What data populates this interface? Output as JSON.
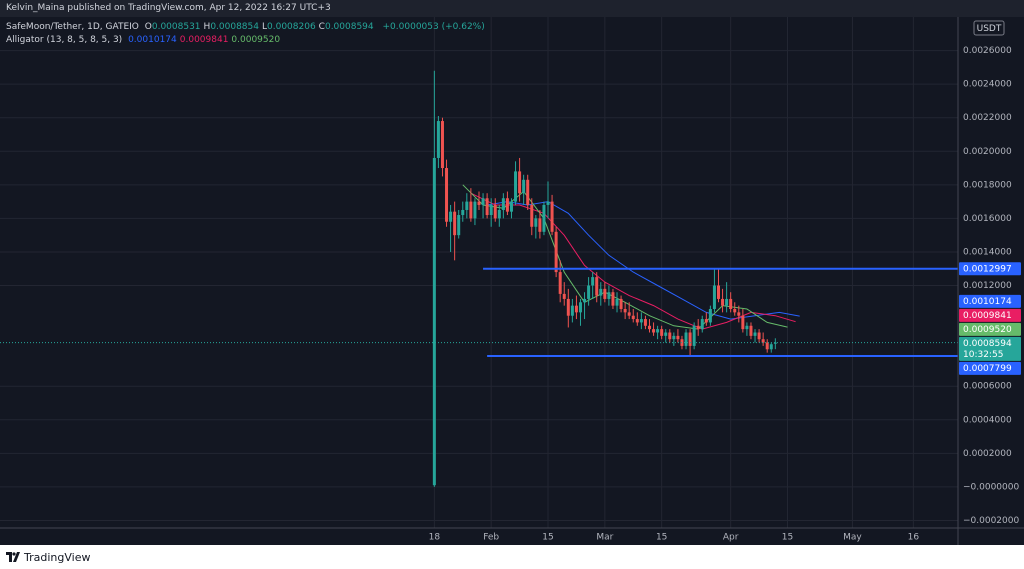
{
  "header": "Kelvin_Maina published on TradingView.com, Apr 12, 2022 16:27 UTC+3",
  "footer": "TradingView",
  "chart_data": {
    "type": "candlestick",
    "symbol": "SafeMoon/Tether, 1D, GATEIO",
    "ohlc_legend": [
      {
        "key": "O",
        "value": 0.0008531
      },
      {
        "key": "H",
        "value": 0.0008854
      },
      {
        "key": "L",
        "value": 0.0008206
      },
      {
        "key": "C",
        "value": 0.0008594
      }
    ],
    "change": "+0.0000053 (+0.62%)",
    "currency": "USDT",
    "countdown": "10:32:55",
    "up_color": "#26a69a",
    "down_color": "#ef5350",
    "xlim": [
      "10-03",
      "05-27"
    ],
    "ylim": [
      -0.000245,
      0.0028
    ],
    "grid": true,
    "xticks": [
      {
        "value": "01-18",
        "label": "18"
      },
      {
        "value": "02-01",
        "label": "Feb"
      },
      {
        "value": "02-15",
        "label": "15"
      },
      {
        "value": "03-01",
        "label": "Mar"
      },
      {
        "value": "03-15",
        "label": "15"
      },
      {
        "value": "04-01",
        "label": "Apr"
      },
      {
        "value": "04-15",
        "label": "15"
      },
      {
        "value": "05-01",
        "label": "May"
      },
      {
        "value": "05-16",
        "label": "16"
      }
    ],
    "yticks": [
      {
        "value": 0.0026,
        "label": "0.0026000"
      },
      {
        "value": 0.0024,
        "label": "0.0024000"
      },
      {
        "value": 0.0022,
        "label": "0.0022000"
      },
      {
        "value": 0.002,
        "label": "0.0020000"
      },
      {
        "value": 0.0018,
        "label": "0.0018000"
      },
      {
        "value": 0.0016,
        "label": "0.0016000"
      },
      {
        "value": 0.0014,
        "label": "0.0014000"
      },
      {
        "value": 0.0012,
        "label": "0.0012000"
      },
      {
        "value": 0.0006,
        "label": "0.0006000"
      },
      {
        "value": 0.0004,
        "label": "0.0004000"
      },
      {
        "value": 0.0002,
        "label": "0.0002000"
      },
      {
        "value": 0,
        "label": "−0.0000000"
      },
      {
        "value": -0.0002,
        "label": "−0.0002000"
      }
    ],
    "x": [
      "01-18",
      "01-19",
      "01-20",
      "01-21",
      "01-22",
      "01-23",
      "01-24",
      "01-25",
      "01-26",
      "01-27",
      "01-28",
      "01-29",
      "01-30",
      "01-31",
      "02-01",
      "02-02",
      "02-03",
      "02-04",
      "02-05",
      "02-06",
      "02-07",
      "02-08",
      "02-09",
      "02-10",
      "02-11",
      "02-12",
      "02-13",
      "02-14",
      "02-15",
      "02-16",
      "02-17",
      "02-18",
      "02-19",
      "02-20",
      "02-21",
      "02-22",
      "02-23",
      "02-24",
      "02-25",
      "02-26",
      "02-27",
      "02-28",
      "03-01",
      "03-02",
      "03-03",
      "03-04",
      "03-05",
      "03-06",
      "03-07",
      "03-08",
      "03-09",
      "03-10",
      "03-11",
      "03-12",
      "03-13",
      "03-14",
      "03-15",
      "03-16",
      "03-17",
      "03-18",
      "03-19",
      "03-20",
      "03-21",
      "03-22",
      "03-23",
      "03-24",
      "03-25",
      "03-26",
      "03-27",
      "03-28",
      "03-29",
      "03-30",
      "03-31",
      "04-01",
      "04-02",
      "04-03",
      "04-04",
      "04-05",
      "04-06",
      "04-07",
      "04-08",
      "04-09",
      "04-10",
      "04-11",
      "04-12"
    ],
    "open": [
      1e-05,
      0.00196,
      0.00218,
      0.0019,
      0.00158,
      0.00164,
      0.0015,
      0.00162,
      0.00165,
      0.0017,
      0.0016,
      0.0017,
      0.00168,
      0.00172,
      0.00162,
      0.00168,
      0.0016,
      0.00165,
      0.00172,
      0.00164,
      0.0017,
      0.00188,
      0.00175,
      0.00183,
      0.00168,
      0.00155,
      0.0016,
      0.00152,
      0.00168,
      0.0017,
      0.00152,
      0.00128,
      0.00115,
      0.00112,
      0.00102,
      0.00108,
      0.00104,
      0.0011,
      0.00112,
      0.0012,
      0.00125,
      0.00114,
      0.00118,
      0.00112,
      0.00116,
      0.00108,
      0.00112,
      0.00106,
      0.00104,
      0.00102,
      0.001,
      0.00098,
      0.001,
      0.00096,
      0.00094,
      0.00092,
      0.00094,
      0.0009,
      0.00092,
      0.00088,
      0.0009,
      0.00088,
      0.00084,
      0.00092,
      0.00084,
      0.00096,
      0.00094,
      0.001,
      0.00098,
      0.00106,
      0.0012,
      0.00112,
      0.00108,
      0.00112,
      0.00106,
      0.00104,
      0.00102,
      0.00094,
      0.00096,
      0.0009,
      0.00092,
      0.00088,
      0.00086,
      0.00082,
      0.0008531
    ],
    "high": [
      0.00248,
      0.00221,
      0.0022,
      0.00195,
      0.00168,
      0.0017,
      0.00165,
      0.0017,
      0.00175,
      0.00178,
      0.00172,
      0.00176,
      0.00175,
      0.00175,
      0.00172,
      0.00172,
      0.00168,
      0.00175,
      0.00176,
      0.00172,
      0.00194,
      0.00196,
      0.00186,
      0.00186,
      0.00172,
      0.00162,
      0.00165,
      0.0017,
      0.00182,
      0.00174,
      0.00155,
      0.00135,
      0.00122,
      0.00118,
      0.00112,
      0.00114,
      0.00112,
      0.00116,
      0.00125,
      0.00128,
      0.00128,
      0.00122,
      0.00122,
      0.0012,
      0.00118,
      0.00116,
      0.00114,
      0.0011,
      0.0011,
      0.00106,
      0.00104,
      0.00104,
      0.00102,
      0.001,
      0.00098,
      0.00096,
      0.00096,
      0.00094,
      0.00094,
      0.00092,
      0.00094,
      0.0009,
      0.00094,
      0.00094,
      0.00098,
      0.001,
      0.00102,
      0.00104,
      0.00108,
      0.0013,
      0.0013,
      0.00118,
      0.00122,
      0.00116,
      0.0011,
      0.00108,
      0.00106,
      0.00098,
      0.00098,
      0.00094,
      0.00094,
      0.00092,
      0.00088,
      0.00086,
      0.0008854
    ],
    "low": [
      0,
      0.0019,
      0.00185,
      0.00155,
      0.0014,
      0.00135,
      0.00148,
      0.00158,
      0.0016,
      0.00158,
      0.00156,
      0.00165,
      0.0016,
      0.0016,
      0.00155,
      0.00158,
      0.00155,
      0.0016,
      0.00162,
      0.0016,
      0.00168,
      0.0017,
      0.00168,
      0.00165,
      0.0015,
      0.00148,
      0.00148,
      0.0015,
      0.0016,
      0.0015,
      0.00125,
      0.0011,
      0.00108,
      0.00095,
      0.00098,
      0.001,
      0.00096,
      0.001,
      0.00108,
      0.00112,
      0.0011,
      0.00108,
      0.0011,
      0.00108,
      0.00106,
      0.00104,
      0.00104,
      0.001,
      0.001,
      0.00098,
      0.00096,
      0.00094,
      0.00094,
      0.00092,
      0.0009,
      0.00088,
      0.00088,
      0.00086,
      0.00086,
      0.00084,
      0.00086,
      0.00082,
      0.00082,
      0.00078,
      0.00082,
      0.0009,
      0.00092,
      0.00096,
      0.00096,
      0.00104,
      0.0011,
      0.00104,
      0.00104,
      0.00104,
      0.00102,
      0.00098,
      0.00092,
      0.0009,
      0.00088,
      0.00086,
      0.00086,
      0.00084,
      0.0008,
      0.0008,
      0.0008206
    ],
    "close": [
      0.00196,
      0.00218,
      0.0019,
      0.00158,
      0.00164,
      0.0015,
      0.00162,
      0.00165,
      0.0017,
      0.0016,
      0.0017,
      0.00168,
      0.00172,
      0.00162,
      0.00168,
      0.0016,
      0.00165,
      0.00172,
      0.00164,
      0.0017,
      0.00188,
      0.00175,
      0.00183,
      0.00168,
      0.00155,
      0.0016,
      0.00152,
      0.00168,
      0.0017,
      0.00152,
      0.00128,
      0.00115,
      0.00112,
      0.00102,
      0.00108,
      0.00104,
      0.0011,
      0.00112,
      0.0012,
      0.00125,
      0.00114,
      0.00118,
      0.00112,
      0.00116,
      0.00108,
      0.00112,
      0.00106,
      0.00104,
      0.00102,
      0.001,
      0.00098,
      0.001,
      0.00096,
      0.00094,
      0.00092,
      0.00094,
      0.0009,
      0.00092,
      0.00088,
      0.0009,
      0.00088,
      0.00084,
      0.00092,
      0.00084,
      0.00096,
      0.00094,
      0.001,
      0.00098,
      0.00106,
      0.0012,
      0.00112,
      0.00108,
      0.00112,
      0.00106,
      0.00104,
      0.00102,
      0.00094,
      0.00096,
      0.0009,
      0.00092,
      0.00088,
      0.00086,
      0.00082,
      0.00085,
      0.0008594
    ],
    "indicator": {
      "name": "Alligator (13, 8, 5, 8, 5, 3)",
      "lines": [
        {
          "color": "#2962ff",
          "legend_value": 0.0010174,
          "x": [
            "01-31",
            "02-05",
            "02-10",
            "02-15",
            "02-20",
            "02-25",
            "03-02",
            "03-08",
            "03-14",
            "03-20",
            "03-26",
            "04-01",
            "04-07",
            "04-13",
            "04-18"
          ],
          "values": [
            0.00168,
            0.0017,
            0.00168,
            0.0017,
            0.00163,
            0.0015,
            0.00138,
            0.00128,
            0.0012,
            0.00112,
            0.00104,
            0.001,
            0.00102,
            0.00104,
            0.0010174
          ]
        },
        {
          "color": "#e91e63",
          "legend_value": 0.0009841,
          "x": [
            "01-27",
            "02-02",
            "02-08",
            "02-14",
            "02-19",
            "02-24",
            "03-01",
            "03-07",
            "03-13",
            "03-19",
            "03-25",
            "03-31",
            "04-06",
            "04-12",
            "04-17"
          ],
          "values": [
            0.00175,
            0.00168,
            0.00168,
            0.00163,
            0.0015,
            0.00132,
            0.00122,
            0.00114,
            0.00108,
            0.001,
            0.00094,
            0.00098,
            0.00104,
            0.00102,
            0.0009841
          ]
        },
        {
          "color": "#66bb6a",
          "legend_value": {
            "value": 0.000952,
            "label": "0.0009520"
          },
          "x": [
            "01-25",
            "01-30",
            "02-04",
            "02-09",
            "02-14",
            "02-19",
            "02-24",
            "03-01",
            "03-06",
            "03-12",
            "03-18",
            "03-24",
            "03-30",
            "04-05",
            "04-10",
            "04-15"
          ],
          "values": [
            0.0018,
            0.00168,
            0.00166,
            0.00176,
            0.0016,
            0.00128,
            0.0011,
            0.00116,
            0.0011,
            0.00102,
            0.00096,
            0.00094,
            0.00108,
            0.00106,
            0.00098,
            0.000952
          ]
        }
      ]
    },
    "hlines": [
      {
        "value": 0.0012997,
        "from": "01-30",
        "color": "#2962ff"
      },
      {
        "value": 0.0007799,
        "from": "01-31",
        "color": "#2962ff"
      }
    ]
  }
}
